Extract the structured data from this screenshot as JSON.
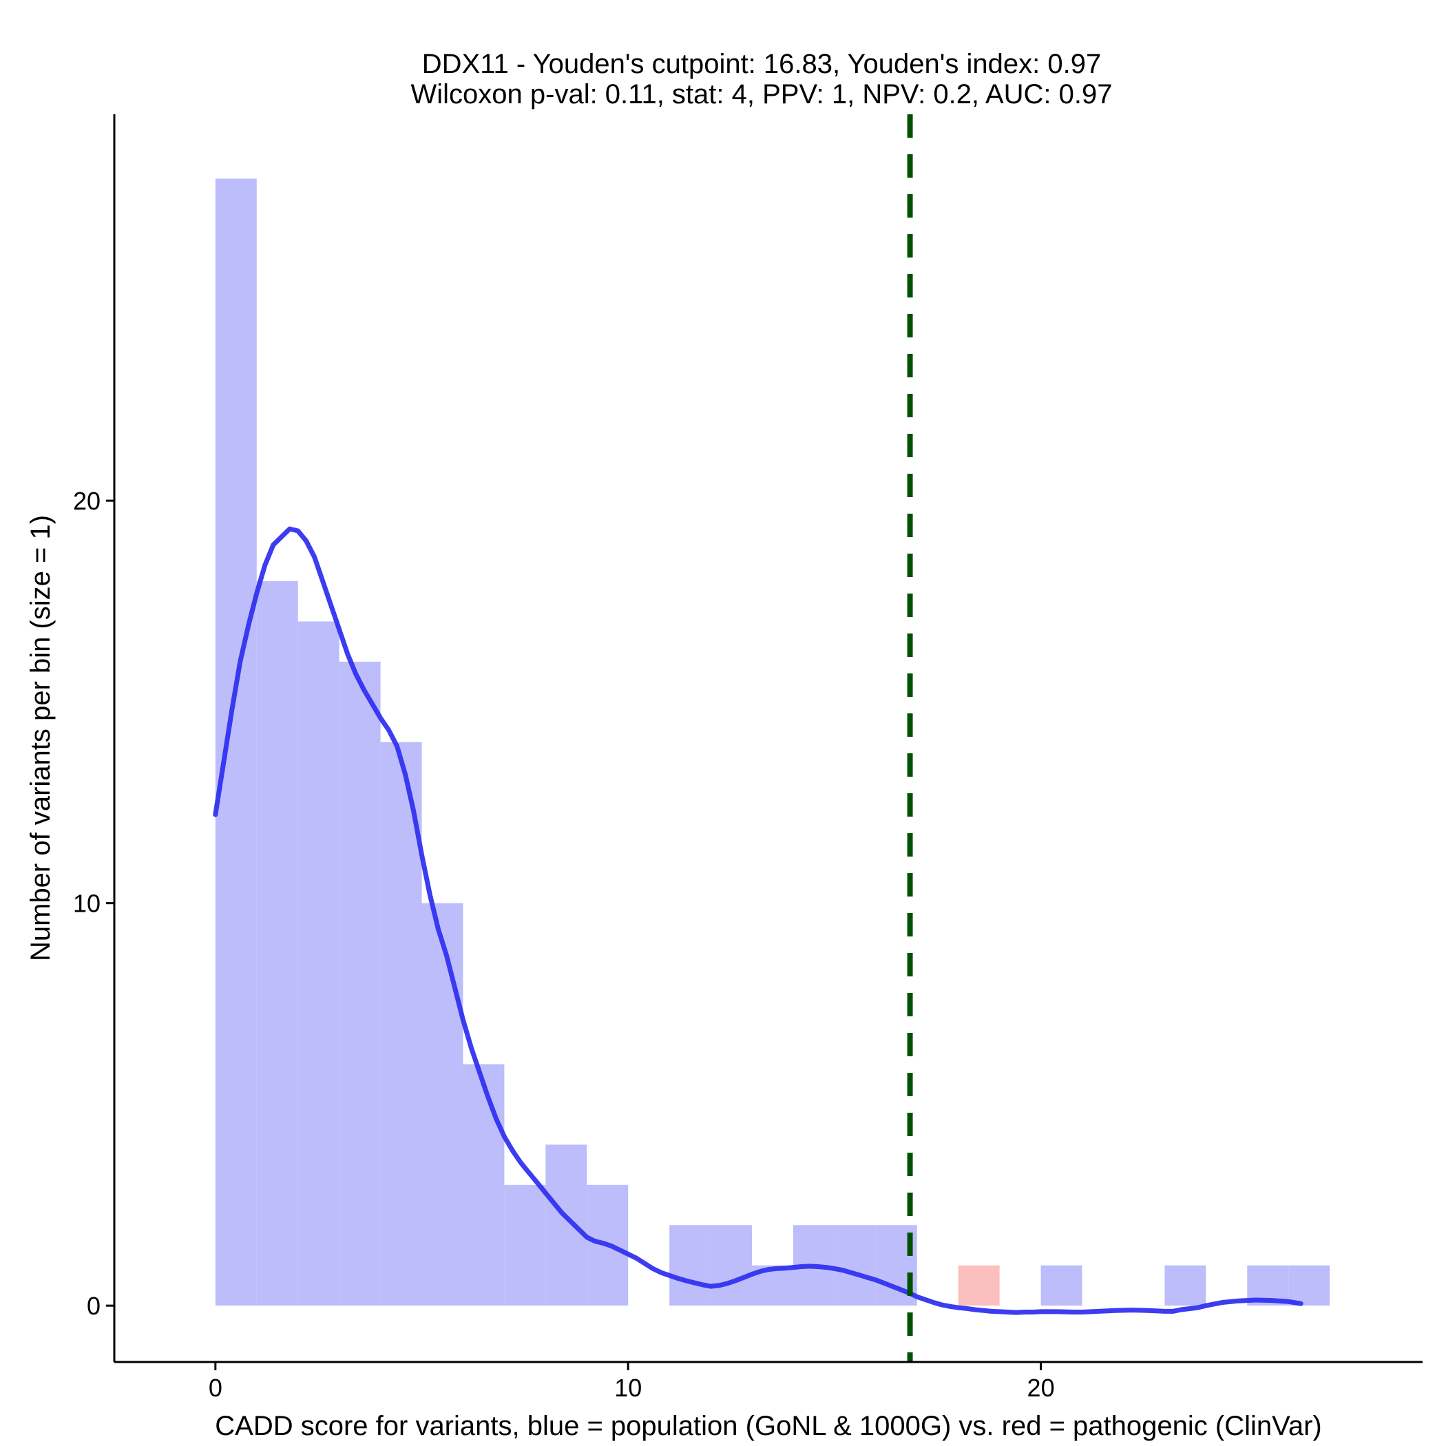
{
  "chart_data": {
    "type": "bar",
    "title_lines": [
      "DDX11 - Youden's cutpoint: 16.83, Youden's index: 0.97",
      "Wilcoxon p-val: 0.11, stat: 4, PPV: 1, NPV: 0.2, AUC: 0.97"
    ],
    "xlabel": "CADD score for variants, blue = population (GoNL & 1000G) vs. red = pathogenic (ClinVar)",
    "ylabel": "Number of variants per bin (size = 1)",
    "xlim": [
      -2.45,
      29.25
    ],
    "ylim": [
      -1.4,
      29.6
    ],
    "x_ticks": [
      0,
      10,
      20
    ],
    "y_ticks": [
      0,
      10,
      20
    ],
    "bin_width": 1,
    "series": [
      {
        "name": "population (GoNL & 1000G)",
        "color": "#bdbdfb",
        "bins": [
          {
            "x0": 0,
            "count": 28
          },
          {
            "x0": 1,
            "count": 18
          },
          {
            "x0": 2,
            "count": 17
          },
          {
            "x0": 3,
            "count": 16
          },
          {
            "x0": 4,
            "count": 14
          },
          {
            "x0": 5,
            "count": 10
          },
          {
            "x0": 6,
            "count": 6
          },
          {
            "x0": 7,
            "count": 3
          },
          {
            "x0": 8,
            "count": 4
          },
          {
            "x0": 9,
            "count": 3
          },
          {
            "x0": 11,
            "count": 2
          },
          {
            "x0": 12,
            "count": 2
          },
          {
            "x0": 13,
            "count": 1
          },
          {
            "x0": 14,
            "count": 2
          },
          {
            "x0": 15,
            "count": 2
          },
          {
            "x0": 16,
            "count": 2
          },
          {
            "x0": 20,
            "count": 1
          },
          {
            "x0": 23,
            "count": 1
          },
          {
            "x0": 25,
            "count": 1
          },
          {
            "x0": 26,
            "count": 1
          }
        ]
      },
      {
        "name": "pathogenic (ClinVar)",
        "color": "#fcbfc0",
        "bins": [
          {
            "x0": 18,
            "count": 1
          }
        ]
      }
    ],
    "density_line": {
      "color": "#3232f0",
      "points": [
        [
          0,
          12.2
        ],
        [
          0.2,
          13.5
        ],
        [
          0.4,
          14.8
        ],
        [
          0.6,
          16.0
        ],
        [
          0.8,
          16.9
        ],
        [
          1.0,
          17.7
        ],
        [
          1.2,
          18.4
        ],
        [
          1.4,
          18.9
        ],
        [
          1.6,
          19.1
        ],
        [
          1.8,
          19.3
        ],
        [
          2.0,
          19.25
        ],
        [
          2.2,
          19.0
        ],
        [
          2.4,
          18.6
        ],
        [
          2.6,
          18.0
        ],
        [
          2.8,
          17.4
        ],
        [
          3.0,
          16.8
        ],
        [
          3.2,
          16.2
        ],
        [
          3.4,
          15.7
        ],
        [
          3.6,
          15.3
        ],
        [
          3.8,
          14.95
        ],
        [
          4.0,
          14.6
        ],
        [
          4.2,
          14.3
        ],
        [
          4.4,
          13.9
        ],
        [
          4.6,
          13.2
        ],
        [
          4.8,
          12.3
        ],
        [
          5.0,
          11.2
        ],
        [
          5.2,
          10.2
        ],
        [
          5.4,
          9.35
        ],
        [
          5.6,
          8.7
        ],
        [
          5.8,
          7.9
        ],
        [
          6.0,
          7.1
        ],
        [
          6.2,
          6.4
        ],
        [
          6.4,
          5.8
        ],
        [
          6.6,
          5.2
        ],
        [
          6.8,
          4.65
        ],
        [
          7.0,
          4.2
        ],
        [
          7.2,
          3.85
        ],
        [
          7.4,
          3.55
        ],
        [
          7.6,
          3.3
        ],
        [
          7.8,
          3.05
        ],
        [
          8.0,
          2.8
        ],
        [
          8.2,
          2.55
        ],
        [
          8.4,
          2.3
        ],
        [
          8.6,
          2.1
        ],
        [
          8.8,
          1.9
        ],
        [
          9.0,
          1.7
        ],
        [
          9.2,
          1.6
        ],
        [
          9.4,
          1.55
        ],
        [
          9.6,
          1.48
        ],
        [
          9.8,
          1.38
        ],
        [
          10.0,
          1.28
        ],
        [
          10.2,
          1.18
        ],
        [
          10.4,
          1.05
        ],
        [
          10.6,
          0.92
        ],
        [
          10.8,
          0.82
        ],
        [
          11.0,
          0.75
        ],
        [
          11.2,
          0.68
        ],
        [
          11.4,
          0.62
        ],
        [
          11.6,
          0.57
        ],
        [
          11.8,
          0.52
        ],
        [
          12.0,
          0.48
        ],
        [
          12.2,
          0.5
        ],
        [
          12.4,
          0.55
        ],
        [
          12.6,
          0.62
        ],
        [
          12.8,
          0.7
        ],
        [
          13.0,
          0.78
        ],
        [
          13.2,
          0.85
        ],
        [
          13.4,
          0.9
        ],
        [
          13.6,
          0.92
        ],
        [
          13.8,
          0.93
        ],
        [
          14.0,
          0.95
        ],
        [
          14.2,
          0.97
        ],
        [
          14.4,
          0.98
        ],
        [
          14.6,
          0.97
        ],
        [
          14.8,
          0.95
        ],
        [
          15.0,
          0.92
        ],
        [
          15.2,
          0.88
        ],
        [
          15.4,
          0.82
        ],
        [
          15.6,
          0.76
        ],
        [
          15.8,
          0.7
        ],
        [
          16.0,
          0.64
        ],
        [
          16.2,
          0.56
        ],
        [
          16.4,
          0.48
        ],
        [
          16.6,
          0.4
        ],
        [
          16.8,
          0.32
        ],
        [
          17.0,
          0.22
        ],
        [
          17.2,
          0.15
        ],
        [
          17.4,
          0.08
        ],
        [
          17.6,
          0.02
        ],
        [
          17.8,
          -0.02
        ],
        [
          18.0,
          -0.05
        ],
        [
          18.2,
          -0.07
        ],
        [
          18.4,
          -0.1
        ],
        [
          18.6,
          -0.12
        ],
        [
          18.8,
          -0.14
        ],
        [
          19.0,
          -0.15
        ],
        [
          19.2,
          -0.16
        ],
        [
          19.4,
          -0.17
        ],
        [
          19.6,
          -0.16
        ],
        [
          19.8,
          -0.16
        ],
        [
          20.0,
          -0.15
        ],
        [
          20.4,
          -0.15
        ],
        [
          20.8,
          -0.16
        ],
        [
          21.0,
          -0.16
        ],
        [
          21.4,
          -0.14
        ],
        [
          21.8,
          -0.12
        ],
        [
          22.2,
          -0.11
        ],
        [
          22.6,
          -0.12
        ],
        [
          23.0,
          -0.14
        ],
        [
          23.2,
          -0.14
        ],
        [
          23.4,
          -0.1
        ],
        [
          23.8,
          -0.05
        ],
        [
          24.0,
          0.0
        ],
        [
          24.4,
          0.08
        ],
        [
          24.8,
          0.12
        ],
        [
          25.2,
          0.14
        ],
        [
          25.6,
          0.13
        ],
        [
          26.0,
          0.1
        ],
        [
          26.3,
          0.05
        ]
      ]
    },
    "cutpoint_line": {
      "x": 16.83,
      "color": "#005100",
      "style": "dashed"
    }
  }
}
